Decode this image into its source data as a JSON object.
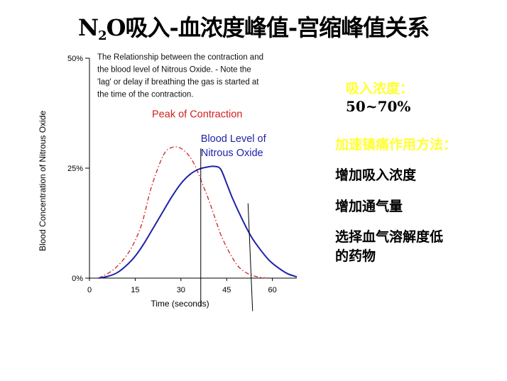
{
  "slide": {
    "title_pre": "N",
    "title_sub": "2",
    "title_post": "O吸入-血浓度峰值-宫缩峰值关系"
  },
  "side": {
    "inhaled_label": "吸入浓度：",
    "inhaled_value": "50~70%",
    "methods_label": "加速镇痛作用方法：",
    "methods": [
      "增加吸入浓度",
      "增加通气量",
      "选择血气溶解度低",
      "的药物"
    ]
  },
  "colors": {
    "blood": "#1f22a8",
    "contraction": "#d02020",
    "yellow": "#ffff33"
  },
  "chart_data": {
    "type": "line",
    "caption": [
      "The Relationship between the contraction and",
      "the blood level of Nitrous Oxide. - Note the",
      "'lag' or delay if breathing the gas is started at",
      "the time of the contraction."
    ],
    "xlabel": "Time (seconds)",
    "ylabel": "Blood Concentration of Nitrous Oxide",
    "xlim": [
      0,
      68
    ],
    "ylim": [
      0,
      50
    ],
    "xticks": [
      0,
      15,
      30,
      45,
      60
    ],
    "yticks": [
      {
        "value": 0,
        "label": "0%"
      },
      {
        "value": 25,
        "label": "25%"
      },
      {
        "value": 50,
        "label": "50%"
      }
    ],
    "grid": false,
    "series": [
      {
        "name": "Peak of Contraction",
        "style": "dash-dot",
        "color": "#d02020",
        "points": [
          [
            3,
            0
          ],
          [
            8,
            2
          ],
          [
            13,
            6
          ],
          [
            17,
            12
          ],
          [
            20,
            20
          ],
          [
            23,
            26
          ],
          [
            25,
            28.8
          ],
          [
            27,
            29.7
          ],
          [
            29,
            29.8
          ],
          [
            31,
            29
          ],
          [
            33,
            27.5
          ],
          [
            35,
            25
          ],
          [
            37,
            21.5
          ],
          [
            39,
            18
          ],
          [
            41,
            14
          ],
          [
            43,
            10
          ],
          [
            45,
            7
          ],
          [
            47,
            4.5
          ],
          [
            49,
            2.5
          ],
          [
            52,
            1
          ],
          [
            55,
            0.3
          ],
          [
            58,
            0
          ]
        ]
      },
      {
        "name": "Blood Level of Nitrous Oxide",
        "style": "solid",
        "color": "#1f22a8",
        "points": [
          [
            3,
            0
          ],
          [
            6,
            0.4
          ],
          [
            9,
            1.2
          ],
          [
            12,
            2.8
          ],
          [
            15,
            5
          ],
          [
            18,
            8
          ],
          [
            21,
            11.5
          ],
          [
            24,
            15
          ],
          [
            27,
            18.5
          ],
          [
            30,
            21.5
          ],
          [
            33,
            23.6
          ],
          [
            36,
            24.8
          ],
          [
            39,
            25.3
          ],
          [
            41,
            25.4
          ],
          [
            43,
            24.8
          ],
          [
            45,
            21.5
          ],
          [
            47,
            18
          ],
          [
            50,
            13.5
          ],
          [
            53,
            9.5
          ],
          [
            56,
            6.5
          ],
          [
            59,
            4
          ],
          [
            62,
            2.3
          ],
          [
            65,
            1
          ],
          [
            68,
            0.3
          ]
        ]
      }
    ],
    "annotations": [
      {
        "text": "Peak of Contraction",
        "color": "#d02020",
        "x": 20.5,
        "y": 36.5
      },
      {
        "text": [
          "Blood Level of",
          "Nitrous Oxide"
        ],
        "color": "#1f22a8",
        "x": 36.5,
        "y": 31
      }
    ],
    "markers": [
      {
        "x1": 36.5,
        "y1": 29.5,
        "x2": 36.5,
        "y2": -6.5
      },
      {
        "x1": 52,
        "y1": 17,
        "x2": 53.5,
        "y2": -7.5
      }
    ]
  }
}
